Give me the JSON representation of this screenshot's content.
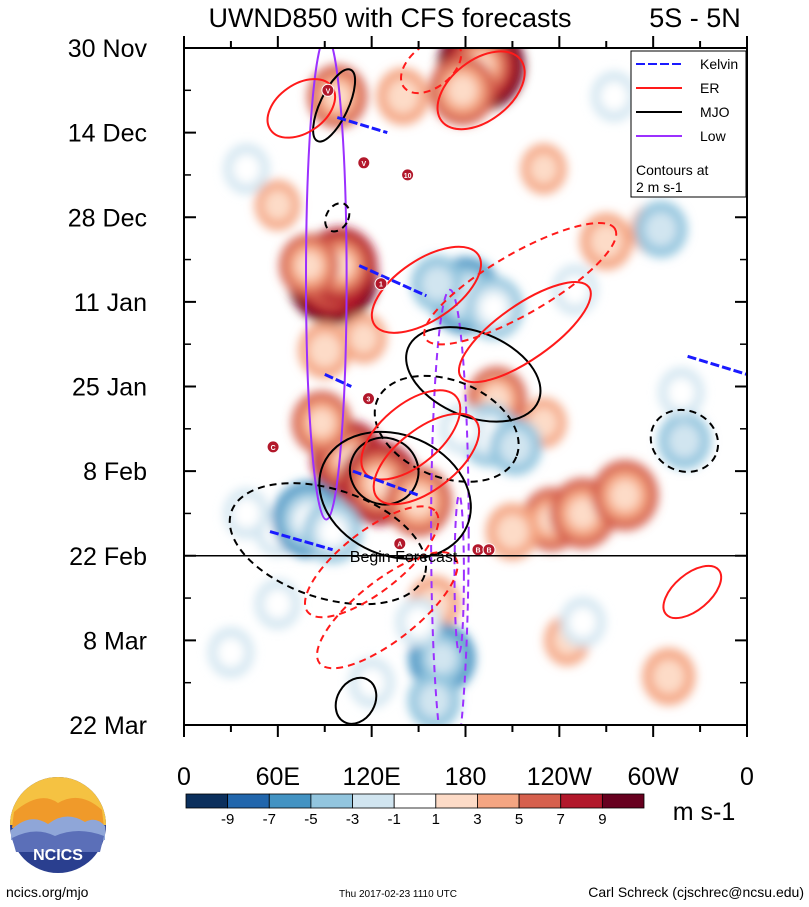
{
  "chart_data": {
    "type": "heatmap",
    "title": "UWND850 with CFS forecasts",
    "region": "5S - 5N",
    "y_labels": [
      "30 Nov",
      "14 Dec",
      "28 Dec",
      "11 Jan",
      "25 Jan",
      "8 Feb",
      "22 Feb",
      "8 Mar",
      "22 Mar"
    ],
    "x_labels": [
      "0",
      "60E",
      "120E",
      "180",
      "120W",
      "60W",
      "0"
    ],
    "x_range_deg": [
      0,
      360
    ],
    "time_range_days": [
      0,
      112
    ],
    "forecast_start_day": 84,
    "forecast_label": "Begin Forecast",
    "colorbar": {
      "levels": [
        "-9",
        "-7",
        "-5",
        "-3",
        "-1",
        "1",
        "3",
        "5",
        "7",
        "9"
      ],
      "colors": [
        "#0b2f5c",
        "#2166ac",
        "#4393c3",
        "#92c5de",
        "#d1e5f0",
        "#ffffff",
        "#fddbc7",
        "#f4a582",
        "#d6604d",
        "#b2182b",
        "#67001f"
      ],
      "units": "m s-1"
    },
    "legend": {
      "items": [
        {
          "name": "Kelvin",
          "color": "#1a1aff"
        },
        {
          "name": "ER",
          "color": "#ff1a1a"
        },
        {
          "name": "MJO",
          "color": "#000000"
        },
        {
          "name": "Low",
          "color": "#9b30ff"
        }
      ],
      "note_line1": "Contours at",
      "note_line2": "2 m s-1"
    },
    "anomalies": [
      {
        "lon": 95,
        "day": 38,
        "val": 9.5
      },
      {
        "lon": 100,
        "day": 36,
        "val": 7
      },
      {
        "lon": 80,
        "day": 36,
        "val": 5
      },
      {
        "lon": 190,
        "day": 3,
        "val": 9
      },
      {
        "lon": 178,
        "day": 7,
        "val": 6
      },
      {
        "lon": 98,
        "day": 8,
        "val": 5
      },
      {
        "lon": 140,
        "day": 8,
        "val": 4
      },
      {
        "lon": 105,
        "day": 68,
        "val": 7
      },
      {
        "lon": 125,
        "day": 72,
        "val": 8
      },
      {
        "lon": 88,
        "day": 62,
        "val": 5
      },
      {
        "lon": 150,
        "day": 75,
        "val": 6
      },
      {
        "lon": 90,
        "day": 50,
        "val": 4
      },
      {
        "lon": 115,
        "day": 48,
        "val": 3
      },
      {
        "lon": 200,
        "day": 58,
        "val": 5
      },
      {
        "lon": 230,
        "day": 62,
        "val": 3
      },
      {
        "lon": 235,
        "day": 78,
        "val": 5
      },
      {
        "lon": 255,
        "day": 77,
        "val": 6
      },
      {
        "lon": 282,
        "day": 74,
        "val": 6
      },
      {
        "lon": 210,
        "day": 80,
        "val": 4
      },
      {
        "lon": 60,
        "day": 26,
        "val": 3
      },
      {
        "lon": 270,
        "day": 32,
        "val": 4
      },
      {
        "lon": 300,
        "day": 30,
        "val": 3
      },
      {
        "lon": 230,
        "day": 20,
        "val": 3
      },
      {
        "lon": 160,
        "day": 92,
        "val": 4
      },
      {
        "lon": 245,
        "day": 98,
        "val": 3
      },
      {
        "lon": 310,
        "day": 104,
        "val": 4
      },
      {
        "lon": 60,
        "day": 80,
        "val": -3
      },
      {
        "lon": 80,
        "day": 78,
        "val": -7
      },
      {
        "lon": 95,
        "day": 80,
        "val": -5
      },
      {
        "lon": 40,
        "day": 77,
        "val": -3
      },
      {
        "lon": 180,
        "day": 41,
        "val": -7
      },
      {
        "lon": 198,
        "day": 43,
        "val": -5
      },
      {
        "lon": 162,
        "day": 39,
        "val": -4
      },
      {
        "lon": 195,
        "day": 64,
        "val": -5
      },
      {
        "lon": 212,
        "day": 66,
        "val": -4
      },
      {
        "lon": 178,
        "day": 63,
        "val": -3
      },
      {
        "lon": 165,
        "day": 101,
        "val": -6
      },
      {
        "lon": 160,
        "day": 108,
        "val": -4
      },
      {
        "lon": 150,
        "day": 95,
        "val": -3
      },
      {
        "lon": 305,
        "day": 30,
        "val": -4
      },
      {
        "lon": 320,
        "day": 65,
        "val": -4
      },
      {
        "lon": 318,
        "day": 57,
        "val": -3
      },
      {
        "lon": 250,
        "day": 40,
        "val": -3
      },
      {
        "lon": 30,
        "day": 100,
        "val": -3
      },
      {
        "lon": 60,
        "day": 92,
        "val": -3
      },
      {
        "lon": 275,
        "day": 8,
        "val": -3
      },
      {
        "lon": 255,
        "day": 95,
        "val": -3
      },
      {
        "lon": 120,
        "day": 105,
        "val": -3
      },
      {
        "lon": 40,
        "day": 20,
        "val": -3
      }
    ],
    "contours": [
      {
        "type": "Low",
        "kind": "solid",
        "lon": 91,
        "day": 38,
        "rx": 13,
        "ry": 40,
        "rot": 0,
        "marks": "pts"
      },
      {
        "type": "Low",
        "kind": "dashed",
        "lon": 170,
        "day": 80,
        "rx": 12,
        "ry": 40,
        "rot": 0
      },
      {
        "type": "Low",
        "kind": "dashed",
        "lon": 176,
        "day": 87,
        "rx": 3,
        "ry": 13,
        "rot": 0
      },
      {
        "type": "MJO",
        "kind": "solid",
        "lon": 96,
        "day": 9.5,
        "rx": 9,
        "ry": 6.5,
        "rot": 25
      },
      {
        "type": "MJO",
        "kind": "dashed",
        "lon": 98,
        "day": 28,
        "rx": 7,
        "ry": 2.5,
        "rot": 30
      },
      {
        "type": "MJO",
        "kind": "solid",
        "lon": 185,
        "day": 54,
        "rx": 45,
        "ry": 7,
        "rot": 22
      },
      {
        "type": "MJO",
        "kind": "dashed",
        "lon": 168,
        "day": 63,
        "rx": 48,
        "ry": 8,
        "rot": 22
      },
      {
        "type": "MJO",
        "kind": "solid",
        "lon": 128,
        "day": 70,
        "rx": 22,
        "ry": 5.5,
        "rot": 22
      },
      {
        "type": "MJO",
        "kind": "solid",
        "lon": 135,
        "day": 74,
        "rx": 50,
        "ry": 10,
        "rot": 23
      },
      {
        "type": "MJO",
        "kind": "dashed",
        "lon": 92,
        "day": 82,
        "rx": 65,
        "ry": 9,
        "rot": 18
      },
      {
        "type": "MJO",
        "kind": "solid",
        "lon": 110,
        "day": 108,
        "rx": 12,
        "ry": 4,
        "rot": 30
      },
      {
        "type": "MJO",
        "kind": "dashed",
        "lon": 320,
        "day": 65,
        "rx": 22,
        "ry": 5,
        "rot": 25
      },
      {
        "type": "ER",
        "kind": "solid",
        "lon": 75,
        "day": 10,
        "rx": 24,
        "ry": 4,
        "rot": -35
      },
      {
        "type": "ER",
        "kind": "solid",
        "lon": 190,
        "day": 7,
        "rx": 32,
        "ry": 5,
        "rot": -38
      },
      {
        "type": "ER",
        "kind": "dashed",
        "lon": 158,
        "day": 3,
        "rx": 22,
        "ry": 3.5,
        "rot": -38
      },
      {
        "type": "ER",
        "kind": "dashed",
        "lon": 215,
        "day": 39,
        "rx": 70,
        "ry": 5,
        "rot": -30
      },
      {
        "type": "ER",
        "kind": "solid",
        "lon": 155,
        "day": 40,
        "rx": 40,
        "ry": 5,
        "rot": -34
      },
      {
        "type": "ER",
        "kind": "solid",
        "lon": 218,
        "day": 47,
        "rx": 50,
        "ry": 4.5,
        "rot": -35
      },
      {
        "type": "ER",
        "kind": "solid",
        "lon": 145,
        "day": 64,
        "rx": 38,
        "ry": 5,
        "rot": -40
      },
      {
        "type": "ER",
        "kind": "solid",
        "lon": 155,
        "day": 68,
        "rx": 40,
        "ry": 5,
        "rot": -38
      },
      {
        "type": "ER",
        "kind": "dashed",
        "lon": 120,
        "day": 85,
        "rx": 52,
        "ry": 5,
        "rot": -38
      },
      {
        "type": "ER",
        "kind": "dashed",
        "lon": 130,
        "day": 93,
        "rx": 55,
        "ry": 5,
        "rot": -38
      },
      {
        "type": "ER",
        "kind": "solid",
        "lon": 325,
        "day": 90,
        "rx": 22,
        "ry": 3,
        "rot": -40
      }
    ],
    "kelvin_segments": [
      {
        "lon1": 98,
        "day1": 11.5,
        "lon2": 130,
        "day2": 14
      },
      {
        "lon1": 112,
        "day1": 36,
        "lon2": 155,
        "day2": 41
      },
      {
        "lon1": 90,
        "day1": 54,
        "lon2": 107,
        "day2": 56
      },
      {
        "lon1": 108,
        "day1": 70,
        "lon2": 150,
        "day2": 74
      },
      {
        "lon1": 55,
        "day1": 80,
        "lon2": 95,
        "day2": 83
      },
      {
        "lon1": 322,
        "day1": 51,
        "lon2": 360,
        "day2": 54
      }
    ],
    "storms": [
      {
        "lon": 92,
        "day": 7,
        "label": "V"
      },
      {
        "lon": 115,
        "day": 19,
        "label": "V"
      },
      {
        "lon": 143,
        "day": 21,
        "label": "10"
      },
      {
        "lon": 126,
        "day": 39,
        "label": "1"
      },
      {
        "lon": 118,
        "day": 58,
        "label": "3"
      },
      {
        "lon": 57,
        "day": 66,
        "label": "C"
      },
      {
        "lon": 138,
        "day": 82,
        "label": "A"
      },
      {
        "lon": 188,
        "day": 83,
        "label": "B"
      },
      {
        "lon": 195,
        "day": 83,
        "label": "B"
      }
    ]
  },
  "footer": {
    "site": "ncics.org/mjo",
    "timestamp": "Thu 2017-02-23 1110 UTC",
    "author": "Carl Schreck (cjschrec@ncsu.edu)",
    "logo_text": "NCICS"
  }
}
